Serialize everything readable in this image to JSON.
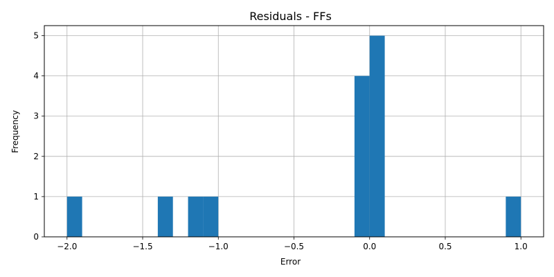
{
  "chart_data": {
    "type": "bar",
    "title": "Residuals - FFs",
    "xlabel": "Error",
    "ylabel": "Frequency",
    "xlim": [
      -2.15,
      1.15
    ],
    "ylim": [
      0,
      5.25
    ],
    "grid": true,
    "bar_color": "#1f77b4",
    "grid_color": "#b0b0b0",
    "xticks": [
      -2.0,
      -1.5,
      -1.0,
      -0.5,
      0.0,
      0.5,
      1.0
    ],
    "xtick_labels": [
      "−2.0",
      "−1.5",
      "−1.0",
      "−0.5",
      "0.0",
      "0.5",
      "1.0"
    ],
    "yticks": [
      0,
      1,
      2,
      3,
      4,
      5
    ],
    "ytick_labels": [
      "0",
      "1",
      "2",
      "3",
      "4",
      "5"
    ],
    "bins": [
      {
        "x0": -2.0,
        "x1": -1.9,
        "count": 1
      },
      {
        "x0": -1.4,
        "x1": -1.3,
        "count": 1
      },
      {
        "x0": -1.2,
        "x1": -1.1,
        "count": 1
      },
      {
        "x0": -1.1,
        "x1": -1.0,
        "count": 1
      },
      {
        "x0": -0.1,
        "x1": 0.0,
        "count": 4
      },
      {
        "x0": 0.0,
        "x1": 0.1,
        "count": 5
      },
      {
        "x0": 0.9,
        "x1": 1.0,
        "count": 1
      }
    ]
  }
}
